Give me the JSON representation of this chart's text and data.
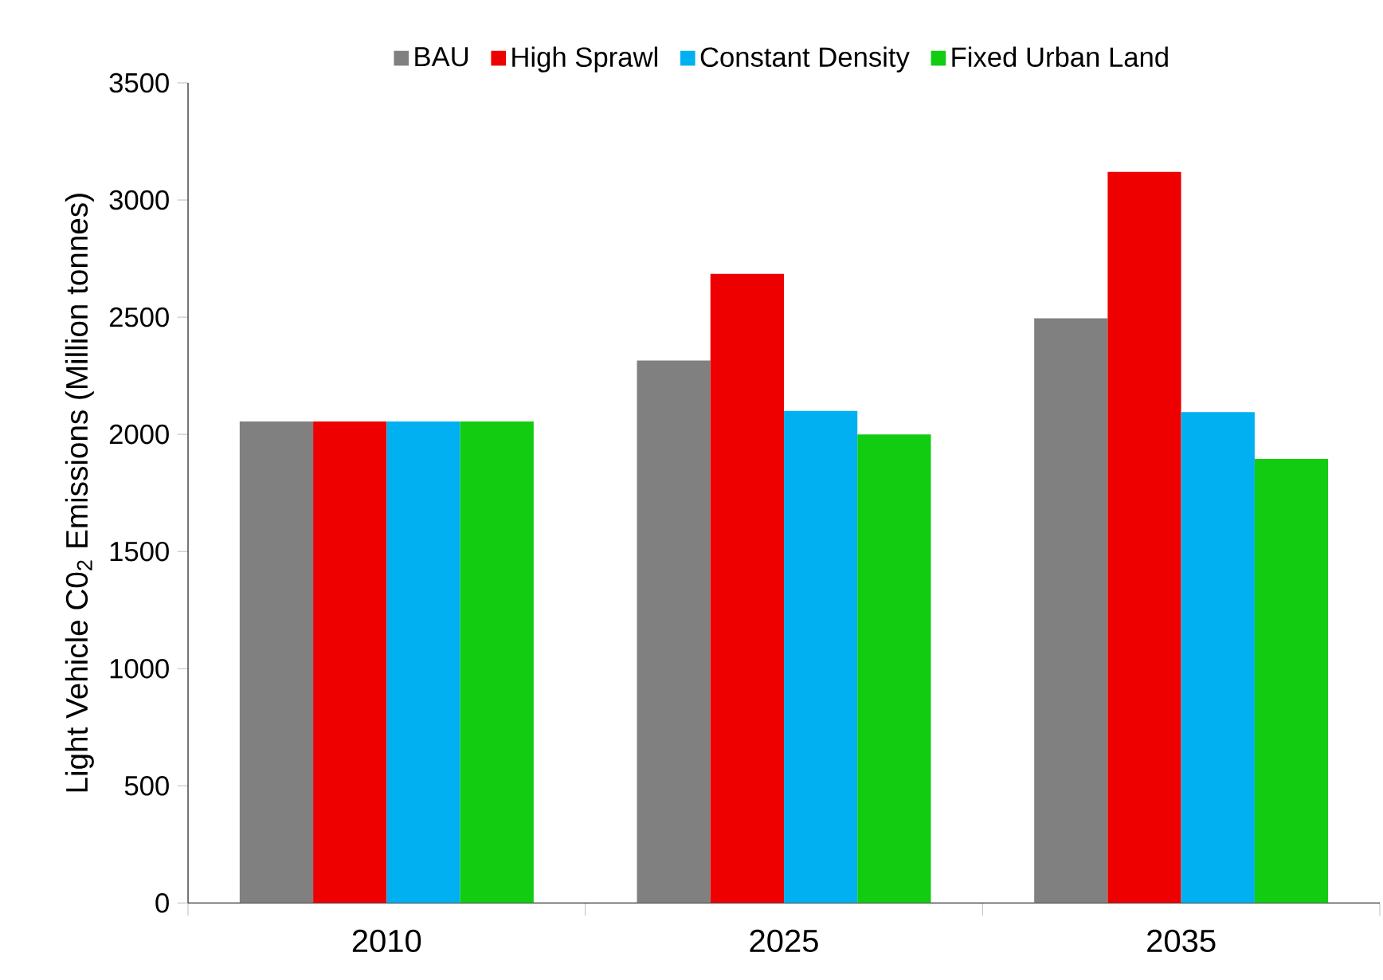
{
  "chart_data": {
    "type": "bar",
    "ylabel": "Light Vehicle C0$_{2}$ Emissions (Million tonnes)",
    "categories": [
      "2010",
      "2025",
      "2035"
    ],
    "series": [
      {
        "name": "BAU",
        "color": "#808080",
        "values": [
          2055,
          2315,
          2495
        ]
      },
      {
        "name": "High Sprawl",
        "color": "#ee0000",
        "values": [
          2055,
          2685,
          3120
        ]
      },
      {
        "name": "Constant Density",
        "color": "#00b0f0",
        "values": [
          2055,
          2100,
          2095
        ]
      },
      {
        "name": "Fixed Urban Land",
        "color": "#12cc12",
        "values": [
          2055,
          2000,
          1895
        ]
      }
    ],
    "ylim": [
      0,
      3500
    ],
    "yticks": [
      0,
      500,
      1000,
      1500,
      2000,
      2500,
      3000,
      3500
    ],
    "legend": "top"
  }
}
